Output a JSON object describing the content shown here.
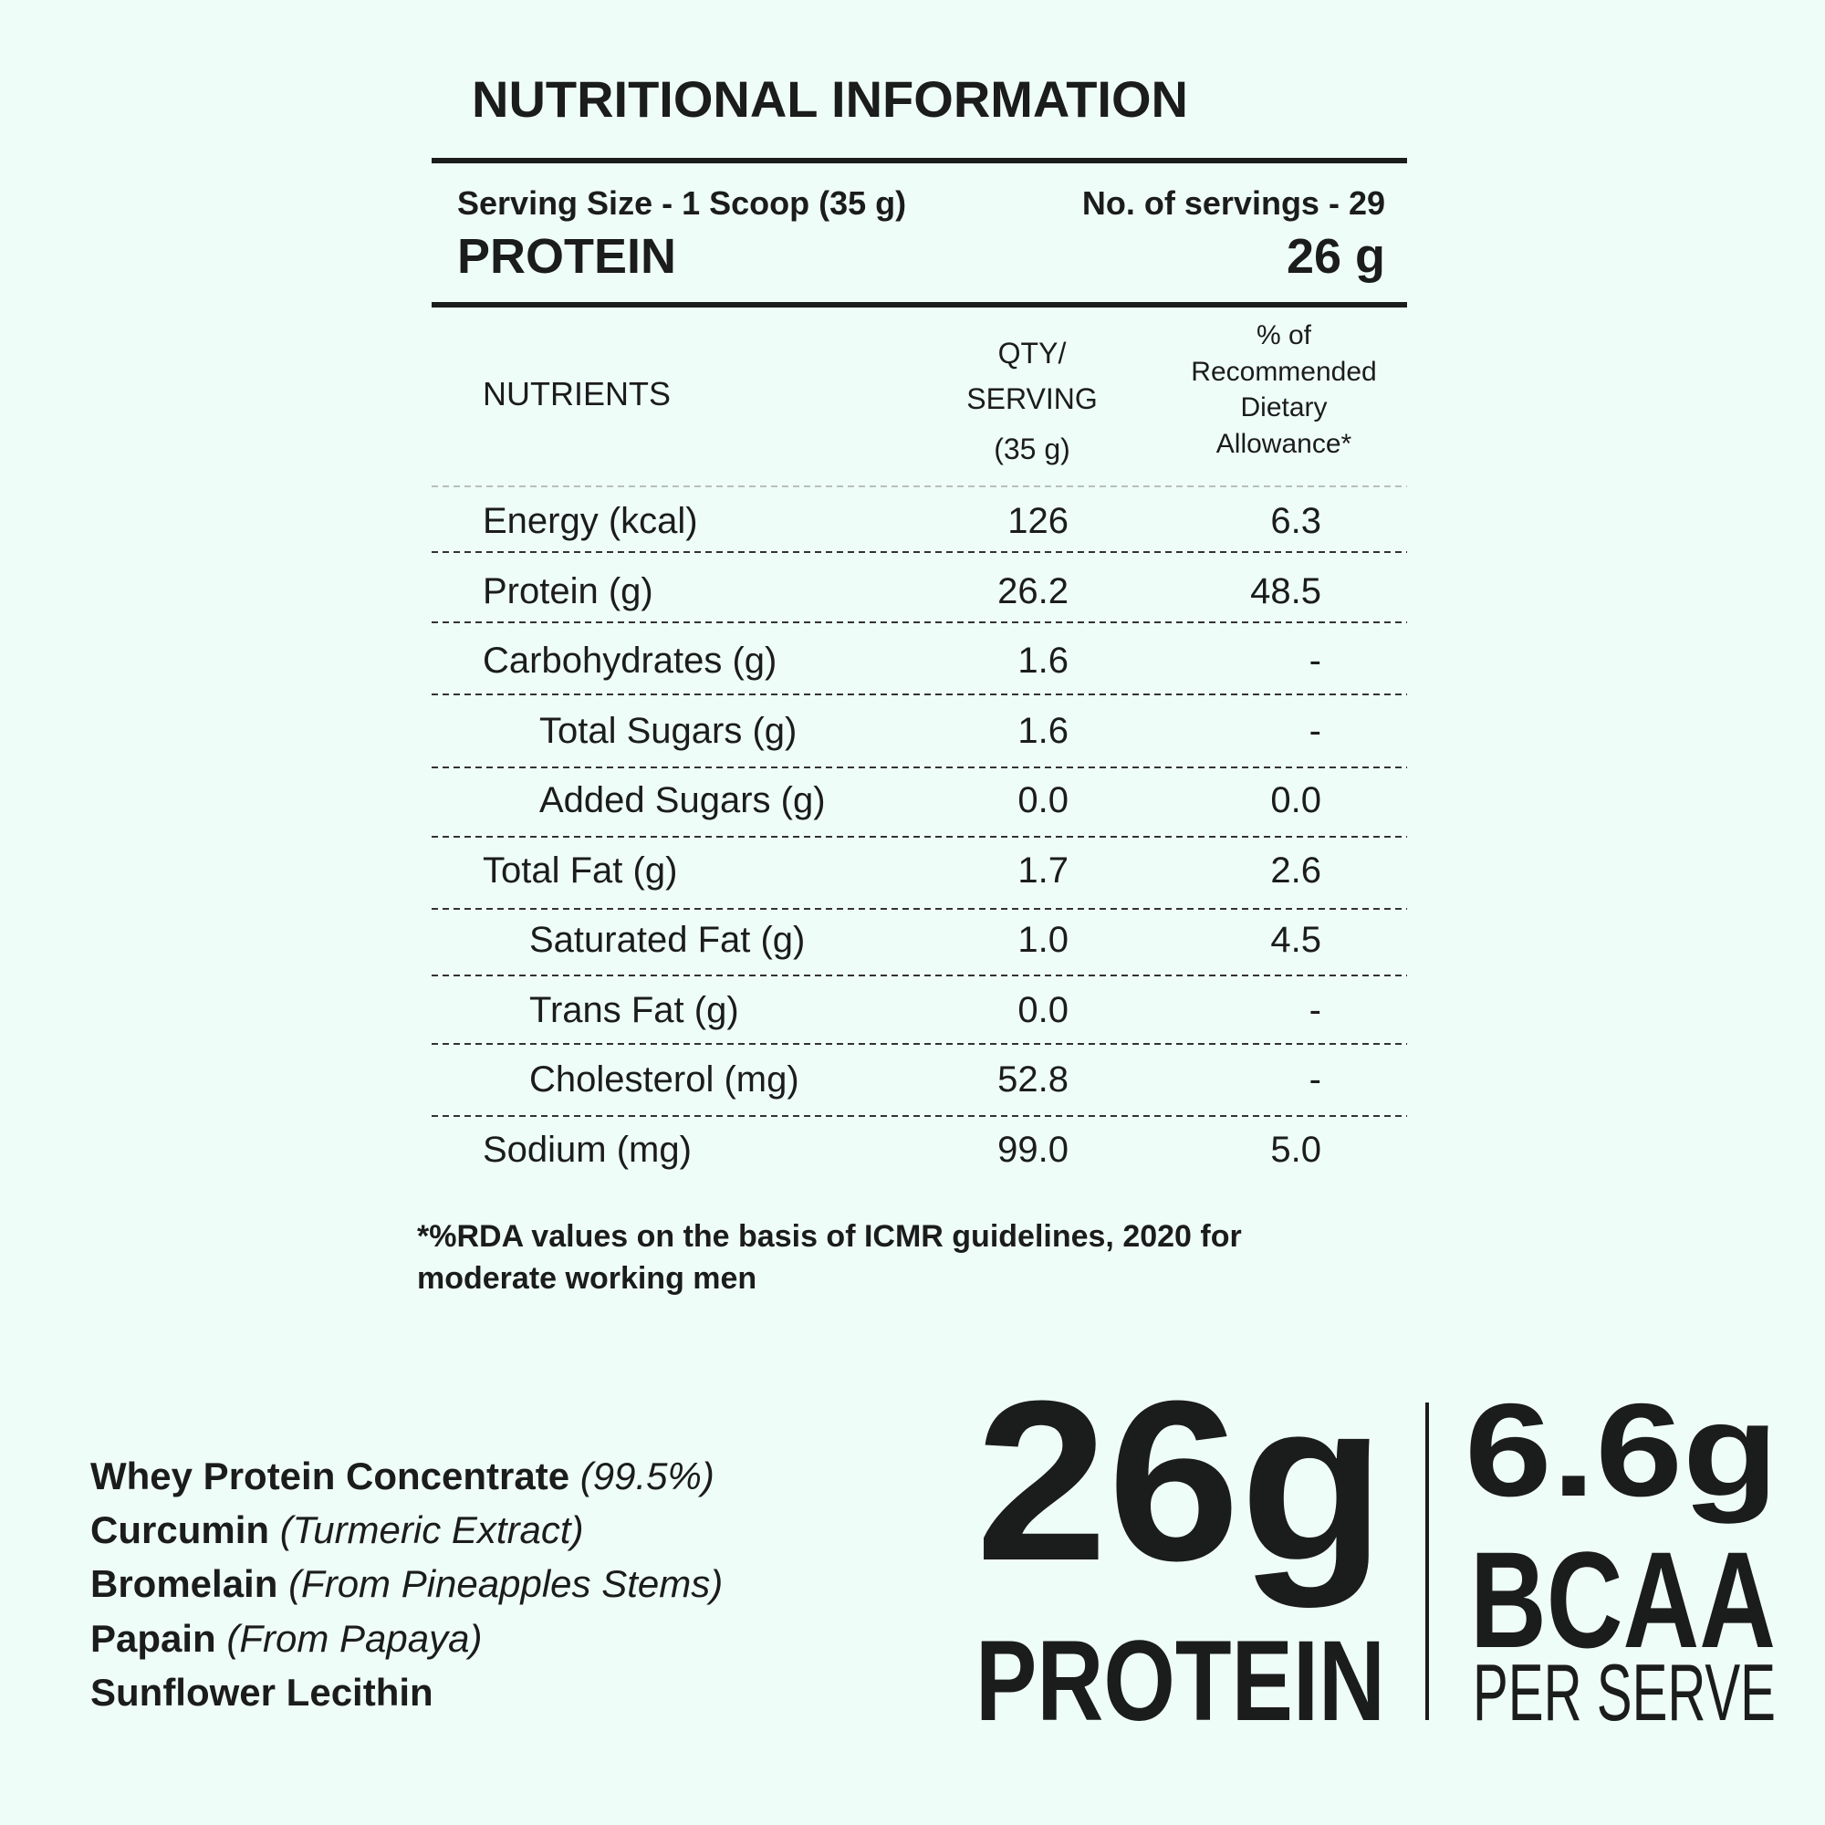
{
  "title": "NUTRITIONAL INFORMATION",
  "summary": {
    "serving_size": "Serving Size - 1 Scoop (35 g)",
    "servings": "No. of servings - 29",
    "protein_label": "PROTEIN",
    "protein_value": "26 g"
  },
  "table": {
    "headers": {
      "nutrients": "NUTRIENTS",
      "qty": [
        "QTY/",
        "SERVING",
        "(35 g)"
      ],
      "rda": [
        "% of",
        "Recommended",
        "Dietary",
        "Allowance*"
      ]
    },
    "rows": [
      [
        "Energy (kcal)",
        "126",
        "6.3"
      ],
      [
        "Protein (g)",
        "26.2",
        "48.5"
      ],
      [
        "Carbohydrates (g)",
        "1.6",
        "-"
      ],
      [
        "Total Sugars (g)",
        "1.6",
        "-"
      ],
      [
        "Added Sugars (g)",
        "0.0",
        "0.0"
      ],
      [
        "Total Fat (g)",
        "1.7",
        "2.6"
      ],
      [
        "Saturated Fat (g)",
        "1.0",
        "4.5"
      ],
      [
        "Trans Fat (g)",
        "0.0",
        "-"
      ],
      [
        "Cholesterol (mg)",
        "52.8",
        "-"
      ],
      [
        "Sodium  (mg)",
        "99.0",
        "5.0"
      ]
    ]
  },
  "footnote": [
    "*%RDA values on the basis of ICMR guidelines, 2020 for",
    "moderate working men"
  ],
  "ingredients": [
    {
      "name": "Whey Protein Concentrate",
      "note": "(99.5%)"
    },
    {
      "name": "Curcumin",
      "note": "(Turmeric Extract)"
    },
    {
      "name": "Bromelain",
      "note": "(From Pineapples Stems)"
    },
    {
      "name": "Papain",
      "note": "(From Papaya)"
    },
    {
      "name": "Sunflower Lecithin"
    }
  ],
  "highlights": {
    "protein_amount": "26g",
    "protein_label": "PROTEIN",
    "bcaa_amount": "6.6g",
    "bcaa_label": "BCAA",
    "per_serve": "PER SERVE"
  }
}
